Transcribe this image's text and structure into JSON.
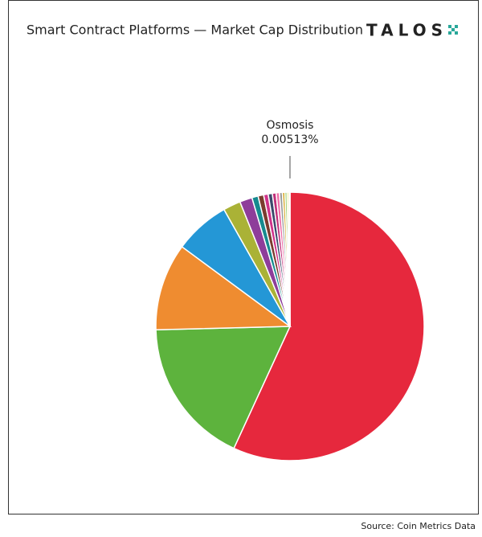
{
  "chart_data": {
    "type": "pie",
    "title": "Smart Contract Platforms — Market Cap Distribution",
    "logo": "TALOS",
    "source": "Source: Coin Metrics Data",
    "categories": [
      null,
      null,
      null,
      null,
      null,
      null,
      null,
      null,
      null,
      null,
      null,
      null,
      null,
      null,
      null,
      null,
      null,
      "Osmosis"
    ],
    "values": [
      56.8,
      17.7,
      10.5,
      6.7,
      2.1,
      1.5,
      0.75,
      0.67,
      0.55,
      0.5,
      0.45,
      0.4,
      0.35,
      0.3,
      0.25,
      0.2,
      0.15,
      0.00513
    ],
    "value_labels": [
      null,
      null,
      null,
      null,
      null,
      null,
      null,
      null,
      null,
      null,
      null,
      null,
      null,
      null,
      null,
      null,
      null,
      "0.00513%"
    ],
    "colors": [
      "#e6283d",
      "#5db33d",
      "#ef8c30",
      "#2497d6",
      "#aab236",
      "#8e3d9a",
      "#168a8f",
      "#7a3b2e",
      "#d0328a",
      "#3b4a6b",
      "#c0307a",
      "#ef6fa8",
      "#9a9a9a",
      "#d7a92b",
      "#8cc85a",
      "#e8d83a",
      "#68b6e6",
      "#999999"
    ]
  }
}
